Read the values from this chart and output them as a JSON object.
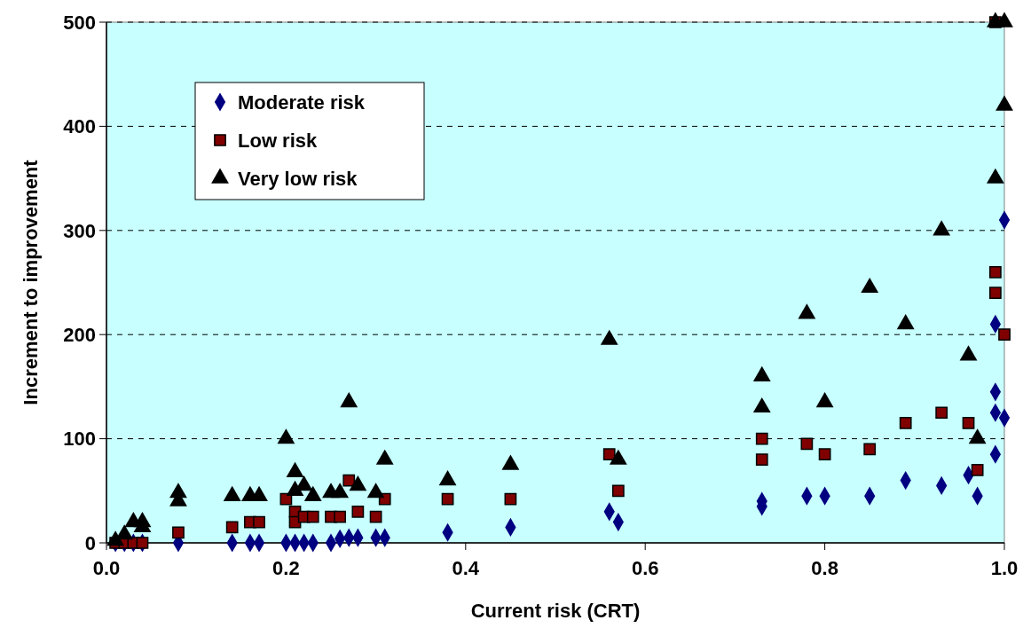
{
  "chart_data": {
    "type": "scatter",
    "xlabel": "Current risk (CRT)",
    "ylabel": "Increment to improvement",
    "xlim": [
      0,
      1
    ],
    "ylim": [
      0,
      500
    ],
    "xticks": [
      {
        "value": 0,
        "label": "0.0"
      },
      {
        "value": 0.2,
        "label": "0.2"
      },
      {
        "value": 0.4,
        "label": "0.4"
      },
      {
        "value": 0.6,
        "label": "0.6"
      },
      {
        "value": 0.8,
        "label": "0.8"
      },
      {
        "value": 1,
        "label": "1.0"
      }
    ],
    "yticks": [
      0,
      100,
      200,
      300,
      400,
      500
    ],
    "grid": "y",
    "legend": "top left",
    "series": [
      {
        "name": "Moderate risk",
        "color": "#000080",
        "marker": "diamond",
        "x": [
          0.01,
          0.02,
          0.03,
          0.04,
          0.08,
          0.14,
          0.16,
          0.17,
          0.2,
          0.21,
          0.22,
          0.23,
          0.25,
          0.26,
          0.27,
          0.28,
          0.3,
          0.31,
          0.38,
          0.45,
          0.56,
          0.57,
          0.73,
          0.73,
          0.78,
          0.8,
          0.85,
          0.89,
          0.93,
          0.96,
          0.97,
          0.99,
          0.99,
          1.0,
          0.99,
          0.99,
          1.0
        ],
        "values": [
          0,
          0,
          0,
          0,
          0,
          0,
          0,
          0,
          0,
          0,
          0,
          0,
          0,
          4,
          5,
          5,
          5,
          5,
          10,
          15,
          30,
          20,
          40,
          35,
          45,
          45,
          45,
          60,
          55,
          65,
          45,
          85,
          125,
          120,
          145,
          210,
          310
        ]
      },
      {
        "name": "Low risk",
        "color": "#800000",
        "marker": "square",
        "x": [
          0.01,
          0.02,
          0.03,
          0.04,
          0.08,
          0.14,
          0.16,
          0.17,
          0.2,
          0.21,
          0.21,
          0.22,
          0.23,
          0.25,
          0.26,
          0.27,
          0.28,
          0.3,
          0.31,
          0.38,
          0.45,
          0.56,
          0.57,
          0.73,
          0.73,
          0.78,
          0.8,
          0.85,
          0.89,
          0.93,
          0.96,
          0.97,
          0.99,
          0.99,
          1.0,
          0.99
        ],
        "values": [
          0,
          0,
          0,
          0,
          10,
          15,
          20,
          20,
          42,
          30,
          20,
          25,
          25,
          25,
          25,
          60,
          30,
          25,
          42,
          42,
          42,
          85,
          50,
          100,
          80,
          95,
          85,
          90,
          115,
          125,
          115,
          70,
          260,
          240,
          200,
          500
        ]
      },
      {
        "name": "Very low risk",
        "color": "#000000",
        "marker": "triangle",
        "x": [
          0.01,
          0.02,
          0.03,
          0.04,
          0.04,
          0.08,
          0.08,
          0.14,
          0.16,
          0.17,
          0.2,
          0.21,
          0.21,
          0.22,
          0.23,
          0.25,
          0.26,
          0.27,
          0.28,
          0.3,
          0.31,
          0.38,
          0.45,
          0.56,
          0.57,
          0.73,
          0.73,
          0.78,
          0.8,
          0.85,
          0.89,
          0.93,
          0.96,
          0.97,
          0.99,
          1.0,
          0.99,
          1.0
        ],
        "values": [
          2,
          8,
          20,
          20,
          15,
          48,
          40,
          45,
          45,
          45,
          100,
          68,
          50,
          55,
          45,
          48,
          48,
          135,
          55,
          48,
          80,
          60,
          75,
          195,
          80,
          160,
          130,
          220,
          135,
          245,
          210,
          300,
          180,
          100,
          350,
          420,
          500,
          500
        ]
      }
    ]
  }
}
